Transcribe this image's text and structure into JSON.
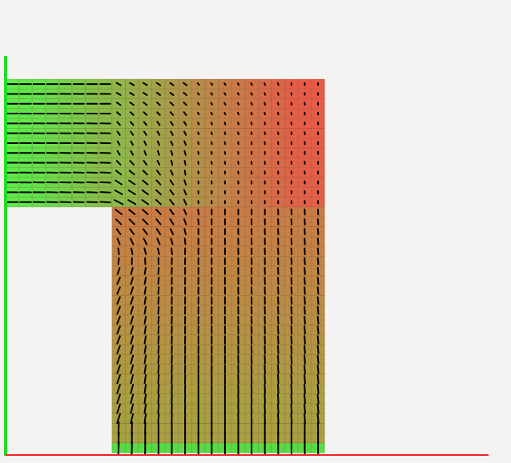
{
  "scene": {
    "background": "#f4f3f1",
    "colors": {
      "cold": "#5fe84a",
      "hot": "#e85a47",
      "mid": "#a8a040",
      "grid_line": "rgba(90,60,40,0.22)",
      "arrow": "#000000",
      "axis_y": "#22dd22",
      "axis_x": "#ee2222",
      "boundary_cell": "#55dd44"
    },
    "mesh": {
      "cols": 24,
      "rows": 38,
      "notch_cols": 8,
      "notch_rows": 13
    },
    "field": {
      "description_note": "",
      "inlet": "left",
      "outlet": "bottom"
    }
  }
}
